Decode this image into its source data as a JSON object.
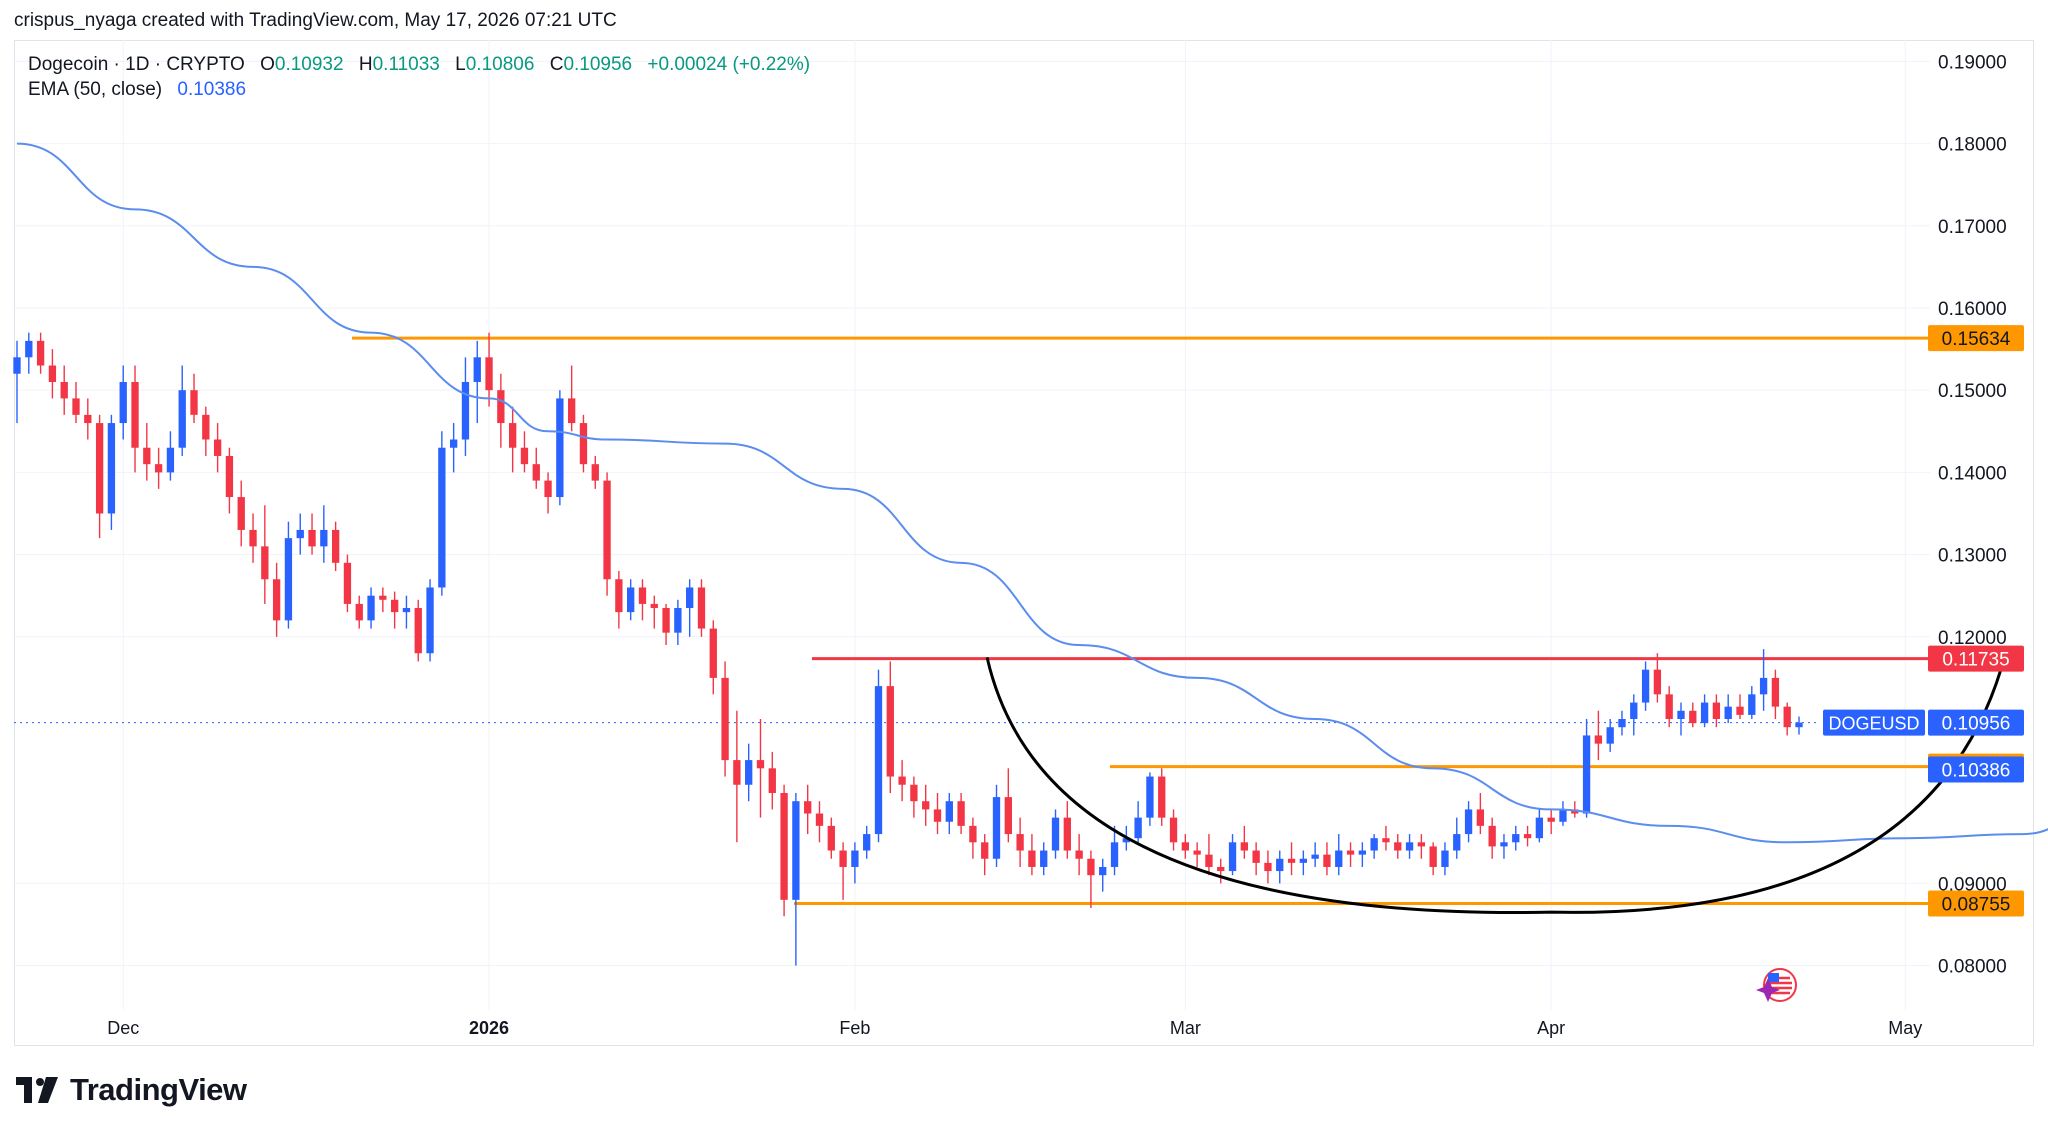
{
  "attribution": "crispus_nyaga created with TradingView.com, May 17, 2026 07:21 UTC",
  "legend": {
    "symbol": "Dogecoin · 1D · CRYPTO",
    "open_label": "O",
    "open": "0.10932",
    "high_label": "H",
    "high": "0.11033",
    "low_label": "L",
    "low": "0.10806",
    "close_label": "C",
    "close": "0.10956",
    "change": "+0.00024 (+0.22%)",
    "ema_label": "EMA (50, close)",
    "ema_value": "0.10386"
  },
  "footer": {
    "brand": "TradingView"
  },
  "colors": {
    "up": "#2962ff",
    "down": "#f23645",
    "ema": "#5b8def",
    "support": "#ff9800",
    "resistance": "#f23645",
    "cup": "#000000"
  },
  "chart_data": {
    "type": "candlestick",
    "symbol": "DOGEUSD",
    "interval": "1D",
    "price_axis": {
      "min": 0.075,
      "max": 0.19,
      "ticks": [
        "0.19000",
        "0.18000",
        "0.17000",
        "0.16000",
        "0.15000",
        "0.14000",
        "0.13000",
        "0.12000",
        "0.09000",
        "0.08000"
      ],
      "position": "right"
    },
    "time_axis": {
      "labels": [
        {
          "text": "Dec",
          "date": "2025-12-01"
        },
        {
          "text": "2026",
          "date": "2026-01-01",
          "bold": true
        },
        {
          "text": "Feb",
          "date": "2026-02-01"
        },
        {
          "text": "Mar",
          "date": "2026-03-01"
        },
        {
          "text": "Apr",
          "date": "2026-04-01"
        },
        {
          "text": "May",
          "date": "2026-05-01"
        }
      ]
    },
    "start_date": "2025-11-22",
    "ohlc": [
      [
        0.152,
        0.156,
        0.146,
        0.154
      ],
      [
        0.154,
        0.157,
        0.152,
        0.156
      ],
      [
        0.156,
        0.157,
        0.152,
        0.153
      ],
      [
        0.153,
        0.155,
        0.149,
        0.151
      ],
      [
        0.151,
        0.153,
        0.147,
        0.149
      ],
      [
        0.149,
        0.151,
        0.146,
        0.147
      ],
      [
        0.147,
        0.149,
        0.144,
        0.146
      ],
      [
        0.146,
        0.147,
        0.132,
        0.135
      ],
      [
        0.135,
        0.147,
        0.133,
        0.146
      ],
      [
        0.146,
        0.153,
        0.144,
        0.151
      ],
      [
        0.151,
        0.153,
        0.14,
        0.143
      ],
      [
        0.143,
        0.146,
        0.139,
        0.141
      ],
      [
        0.141,
        0.143,
        0.138,
        0.14
      ],
      [
        0.14,
        0.145,
        0.139,
        0.143
      ],
      [
        0.143,
        0.153,
        0.142,
        0.15
      ],
      [
        0.15,
        0.152,
        0.146,
        0.147
      ],
      [
        0.147,
        0.148,
        0.142,
        0.144
      ],
      [
        0.144,
        0.146,
        0.14,
        0.142
      ],
      [
        0.142,
        0.143,
        0.135,
        0.137
      ],
      [
        0.137,
        0.139,
        0.131,
        0.133
      ],
      [
        0.133,
        0.135,
        0.129,
        0.131
      ],
      [
        0.131,
        0.136,
        0.124,
        0.127
      ],
      [
        0.127,
        0.129,
        0.12,
        0.122
      ],
      [
        0.122,
        0.134,
        0.121,
        0.132
      ],
      [
        0.132,
        0.135,
        0.13,
        0.133
      ],
      [
        0.133,
        0.135,
        0.13,
        0.131
      ],
      [
        0.131,
        0.136,
        0.129,
        0.133
      ],
      [
        0.133,
        0.134,
        0.128,
        0.129
      ],
      [
        0.129,
        0.13,
        0.123,
        0.124
      ],
      [
        0.124,
        0.125,
        0.121,
        0.122
      ],
      [
        0.122,
        0.126,
        0.121,
        0.125
      ],
      [
        0.125,
        0.126,
        0.123,
        0.1245
      ],
      [
        0.1245,
        0.1255,
        0.121,
        0.123
      ],
      [
        0.123,
        0.125,
        0.121,
        0.1235
      ],
      [
        0.1235,
        0.1245,
        0.117,
        0.118
      ],
      [
        0.118,
        0.127,
        0.117,
        0.126
      ],
      [
        0.126,
        0.145,
        0.125,
        0.143
      ],
      [
        0.143,
        0.146,
        0.14,
        0.144
      ],
      [
        0.144,
        0.154,
        0.142,
        0.151
      ],
      [
        0.151,
        0.156,
        0.146,
        0.154
      ],
      [
        0.154,
        0.157,
        0.148,
        0.15
      ],
      [
        0.15,
        0.152,
        0.143,
        0.146
      ],
      [
        0.146,
        0.148,
        0.14,
        0.143
      ],
      [
        0.143,
        0.145,
        0.14,
        0.141
      ],
      [
        0.141,
        0.143,
        0.138,
        0.139
      ],
      [
        0.139,
        0.14,
        0.135,
        0.137
      ],
      [
        0.137,
        0.15,
        0.136,
        0.149
      ],
      [
        0.149,
        0.153,
        0.145,
        0.146
      ],
      [
        0.146,
        0.147,
        0.14,
        0.141
      ],
      [
        0.141,
        0.142,
        0.138,
        0.139
      ],
      [
        0.139,
        0.14,
        0.125,
        0.127
      ],
      [
        0.127,
        0.128,
        0.121,
        0.123
      ],
      [
        0.123,
        0.127,
        0.122,
        0.126
      ],
      [
        0.126,
        0.127,
        0.122,
        0.124
      ],
      [
        0.124,
        0.125,
        0.121,
        0.1235
      ],
      [
        0.1235,
        0.124,
        0.119,
        0.1205
      ],
      [
        0.1205,
        0.1245,
        0.119,
        0.1235
      ],
      [
        0.1235,
        0.127,
        0.12,
        0.126
      ],
      [
        0.126,
        0.127,
        0.12,
        0.121
      ],
      [
        0.121,
        0.122,
        0.113,
        0.115
      ],
      [
        0.115,
        0.117,
        0.103,
        0.105
      ],
      [
        0.105,
        0.111,
        0.095,
        0.102
      ],
      [
        0.102,
        0.107,
        0.1,
        0.105
      ],
      [
        0.105,
        0.11,
        0.098,
        0.104
      ],
      [
        0.104,
        0.106,
        0.099,
        0.101
      ],
      [
        0.101,
        0.102,
        0.086,
        0.088
      ],
      [
        0.088,
        0.101,
        0.08,
        0.1
      ],
      [
        0.1,
        0.102,
        0.096,
        0.0985
      ],
      [
        0.0985,
        0.1,
        0.095,
        0.097
      ],
      [
        0.097,
        0.098,
        0.093,
        0.094
      ],
      [
        0.094,
        0.095,
        0.088,
        0.092
      ],
      [
        0.092,
        0.095,
        0.09,
        0.094
      ],
      [
        0.094,
        0.097,
        0.093,
        0.096
      ],
      [
        0.096,
        0.116,
        0.095,
        0.114
      ],
      [
        0.114,
        0.117,
        0.101,
        0.103
      ],
      [
        0.103,
        0.105,
        0.1,
        0.102
      ],
      [
        0.102,
        0.103,
        0.098,
        0.1
      ],
      [
        0.1,
        0.102,
        0.097,
        0.099
      ],
      [
        0.099,
        0.101,
        0.096,
        0.0975
      ],
      [
        0.0975,
        0.101,
        0.096,
        0.1
      ],
      [
        0.1,
        0.101,
        0.096,
        0.097
      ],
      [
        0.097,
        0.098,
        0.093,
        0.095
      ],
      [
        0.095,
        0.096,
        0.091,
        0.093
      ],
      [
        0.093,
        0.102,
        0.092,
        0.1005
      ],
      [
        0.1005,
        0.104,
        0.095,
        0.096
      ],
      [
        0.096,
        0.098,
        0.092,
        0.094
      ],
      [
        0.094,
        0.096,
        0.091,
        0.092
      ],
      [
        0.092,
        0.095,
        0.091,
        0.094
      ],
      [
        0.094,
        0.099,
        0.093,
        0.098
      ],
      [
        0.098,
        0.1,
        0.093,
        0.094
      ],
      [
        0.094,
        0.096,
        0.091,
        0.093
      ],
      [
        0.093,
        0.094,
        0.087,
        0.091
      ],
      [
        0.091,
        0.093,
        0.089,
        0.092
      ],
      [
        0.092,
        0.097,
        0.091,
        0.095
      ],
      [
        0.095,
        0.097,
        0.094,
        0.0955
      ],
      [
        0.0955,
        0.1,
        0.095,
        0.098
      ],
      [
        0.098,
        0.1035,
        0.097,
        0.103
      ],
      [
        0.103,
        0.104,
        0.097,
        0.098
      ],
      [
        0.098,
        0.099,
        0.094,
        0.095
      ],
      [
        0.095,
        0.096,
        0.093,
        0.094
      ],
      [
        0.094,
        0.095,
        0.092,
        0.0935
      ],
      [
        0.0935,
        0.096,
        0.091,
        0.092
      ],
      [
        0.092,
        0.093,
        0.09,
        0.0915
      ],
      [
        0.0915,
        0.096,
        0.091,
        0.095
      ],
      [
        0.095,
        0.097,
        0.093,
        0.094
      ],
      [
        0.094,
        0.095,
        0.091,
        0.0925
      ],
      [
        0.0925,
        0.094,
        0.09,
        0.0915
      ],
      [
        0.0915,
        0.094,
        0.09,
        0.093
      ],
      [
        0.093,
        0.095,
        0.091,
        0.0925
      ],
      [
        0.0925,
        0.094,
        0.091,
        0.093
      ],
      [
        0.093,
        0.095,
        0.092,
        0.0935
      ],
      [
        0.0935,
        0.095,
        0.091,
        0.092
      ],
      [
        0.092,
        0.096,
        0.091,
        0.094
      ],
      [
        0.094,
        0.095,
        0.092,
        0.0935
      ],
      [
        0.0935,
        0.095,
        0.092,
        0.094
      ],
      [
        0.094,
        0.096,
        0.093,
        0.0955
      ],
      [
        0.0955,
        0.097,
        0.094,
        0.095
      ],
      [
        0.095,
        0.096,
        0.093,
        0.094
      ],
      [
        0.094,
        0.096,
        0.093,
        0.095
      ],
      [
        0.095,
        0.096,
        0.093,
        0.0945
      ],
      [
        0.0945,
        0.095,
        0.091,
        0.092
      ],
      [
        0.092,
        0.095,
        0.091,
        0.094
      ],
      [
        0.094,
        0.098,
        0.093,
        0.096
      ],
      [
        0.096,
        0.1,
        0.095,
        0.099
      ],
      [
        0.099,
        0.101,
        0.096,
        0.097
      ],
      [
        0.097,
        0.098,
        0.093,
        0.0945
      ],
      [
        0.0945,
        0.096,
        0.093,
        0.095
      ],
      [
        0.095,
        0.097,
        0.094,
        0.096
      ],
      [
        0.096,
        0.097,
        0.0945,
        0.0955
      ],
      [
        0.0955,
        0.099,
        0.095,
        0.098
      ],
      [
        0.098,
        0.099,
        0.096,
        0.0975
      ],
      [
        0.0975,
        0.1,
        0.097,
        0.099
      ],
      [
        0.099,
        0.1,
        0.098,
        0.0985
      ],
      [
        0.0985,
        0.11,
        0.098,
        0.108
      ],
      [
        0.108,
        0.111,
        0.105,
        0.107
      ],
      [
        0.107,
        0.11,
        0.106,
        0.109
      ],
      [
        0.109,
        0.111,
        0.108,
        0.11
      ],
      [
        0.11,
        0.113,
        0.108,
        0.112
      ],
      [
        0.112,
        0.117,
        0.111,
        0.116
      ],
      [
        0.116,
        0.118,
        0.112,
        0.113
      ],
      [
        0.113,
        0.114,
        0.109,
        0.11
      ],
      [
        0.11,
        0.112,
        0.108,
        0.111
      ],
      [
        0.111,
        0.112,
        0.109,
        0.1095
      ],
      [
        0.1095,
        0.113,
        0.109,
        0.112
      ],
      [
        0.112,
        0.113,
        0.109,
        0.11
      ],
      [
        0.11,
        0.113,
        0.1095,
        0.1115
      ],
      [
        0.1115,
        0.113,
        0.11,
        0.1105
      ],
      [
        0.1105,
        0.114,
        0.11,
        0.113
      ],
      [
        0.113,
        0.1185,
        0.111,
        0.115
      ],
      [
        0.115,
        0.116,
        0.11,
        0.1115
      ],
      [
        0.1115,
        0.112,
        0.108,
        0.109
      ],
      [
        0.109,
        0.1103,
        0.1081,
        0.10956
      ]
    ],
    "ema": {
      "name": "EMA (50, close)",
      "last": 0.10386,
      "path": [
        [
          0,
          0.18
        ],
        [
          10,
          0.172
        ],
        [
          20,
          0.165
        ],
        [
          30,
          0.157
        ],
        [
          40,
          0.149
        ],
        [
          45,
          0.145
        ],
        [
          50,
          0.144
        ],
        [
          60,
          0.1435
        ],
        [
          70,
          0.138
        ],
        [
          80,
          0.129
        ],
        [
          90,
          0.119
        ],
        [
          100,
          0.115
        ],
        [
          110,
          0.11
        ],
        [
          120,
          0.104
        ],
        [
          130,
          0.099
        ],
        [
          140,
          0.097
        ],
        [
          150,
          0.095
        ],
        [
          160,
          0.0955
        ],
        [
          170,
          0.096
        ],
        [
          178,
          0.101
        ],
        [
          183,
          0.1025
        ],
        [
          187,
          0.10386
        ]
      ]
    },
    "horizontal_levels": [
      {
        "price": 0.15634,
        "label": "0.15634",
        "color": "#ff9800"
      },
      {
        "price": 0.11735,
        "label": "0.11735",
        "color": "#f23645"
      },
      {
        "price": 0.10421,
        "label": "0.10421",
        "color": "#ff9800"
      },
      {
        "price": 0.08755,
        "label": "0.08755",
        "color": "#ff9800"
      }
    ],
    "price_tags": [
      {
        "label": "DOGEUSD",
        "value": "0.10956",
        "color": "#2962ff"
      },
      {
        "label": "",
        "value": "0.10386",
        "color": "#2962ff"
      }
    ],
    "annotations": [
      {
        "type": "cup_arc",
        "description": "rounded bottom pattern",
        "color": "#000000"
      }
    ]
  }
}
